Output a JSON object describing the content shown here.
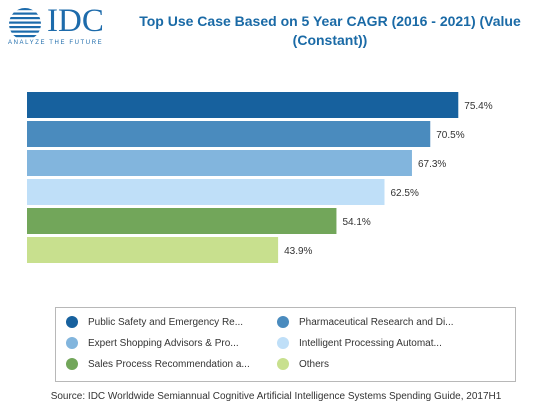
{
  "logo": {
    "text": "IDC",
    "tagline": "ANALYZE THE FUTURE",
    "icon": "globe-icon"
  },
  "chart_data": {
    "type": "bar",
    "orientation": "horizontal",
    "title": "Top Use Case Based on 5 Year CAGR (2016 - 2021) (Value (Constant))",
    "xlabel": "",
    "ylabel": "",
    "grid": false,
    "legend_placement": "bottom",
    "xlim": [
      0,
      100
    ],
    "series": [
      {
        "name": "Public Safety and Emergency Re...",
        "value": 75.4,
        "label": "75.4%",
        "color": "#17619e"
      },
      {
        "name": "Pharmaceutical Research and Di...",
        "value": 70.5,
        "label": "70.5%",
        "color": "#4a8bbe"
      },
      {
        "name": "Expert Shopping Advisors & Pro...",
        "value": 67.3,
        "label": "67.3%",
        "color": "#82b5dd"
      },
      {
        "name": "Intelligent Processing Automat...",
        "value": 62.5,
        "label": "62.5%",
        "color": "#bfdff8"
      },
      {
        "name": "Sales Process Recommendation a...",
        "value": 54.1,
        "label": "54.1%",
        "color": "#72a65a"
      },
      {
        "name": "Others",
        "value": 43.9,
        "label": "43.9%",
        "color": "#c8e08e"
      }
    ]
  },
  "source": "Source: IDC Worldwide Semiannual Cognitive Artificial Intelligence Systems Spending Guide, 2017H1"
}
